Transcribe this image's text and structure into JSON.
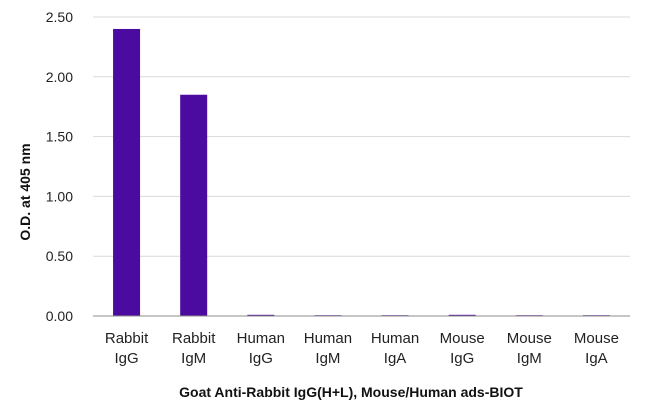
{
  "chart_data": {
    "type": "bar",
    "title": "",
    "xlabel": "Goat Anti-Rabbit IgG(H+L), Mouse/Human ads-BIOT",
    "ylabel": "O.D. at 405 nm",
    "ylim": [
      0,
      2.5
    ],
    "yticks": [
      "0.00",
      "0.50",
      "1.00",
      "1.50",
      "2.00",
      "2.50"
    ],
    "categories": [
      [
        "Rabbit",
        "IgG"
      ],
      [
        "Rabbit",
        "IgM"
      ],
      [
        "Human",
        "IgG"
      ],
      [
        "Human",
        "IgM"
      ],
      [
        "Human",
        "IgA"
      ],
      [
        "Mouse",
        "IgG"
      ],
      [
        "Mouse",
        "IgM"
      ],
      [
        "Mouse",
        "IgA"
      ]
    ],
    "values": [
      2.4,
      1.85,
      0.01,
      0.0,
      0.0,
      0.01,
      0.0,
      0.0
    ],
    "bar_color": "#4b0aa0",
    "grid": true,
    "legend": "none"
  }
}
